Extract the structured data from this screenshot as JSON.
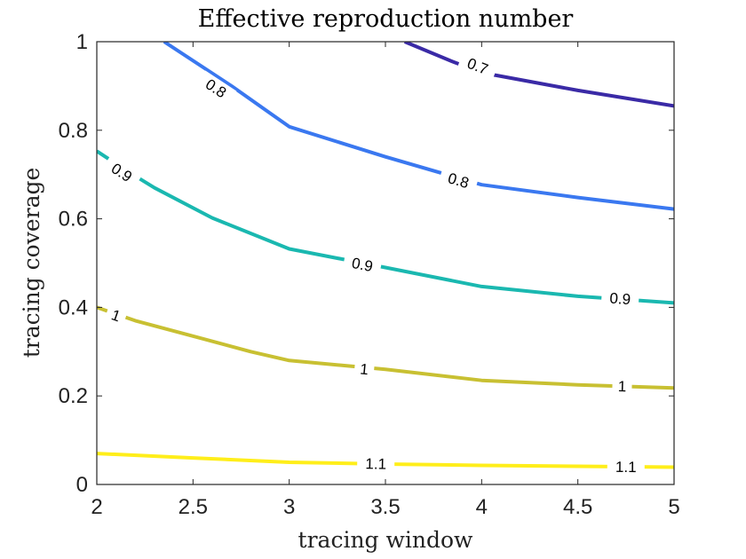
{
  "chart_data": {
    "type": "contour",
    "title": "Effective reproduction number",
    "xlabel": "tracing window",
    "ylabel": "tracing coverage",
    "xlim": [
      2,
      5
    ],
    "ylim": [
      0,
      1
    ],
    "xticks": [
      2,
      2.5,
      3,
      3.5,
      4,
      4.5,
      5
    ],
    "yticks": [
      0,
      0.2,
      0.4,
      0.6,
      0.8,
      1
    ],
    "xtick_labels": [
      "2",
      "2.5",
      "3",
      "3.5",
      "4",
      "4.5",
      "5"
    ],
    "ytick_labels": [
      "0",
      "0.2",
      "0.4",
      "0.6",
      "0.8",
      "1"
    ],
    "grid": false,
    "legend": "none",
    "series": [
      {
        "level": "0.7",
        "color": "#3a2aa6",
        "points": [
          [
            3.6,
            1.0
          ],
          [
            3.85,
            0.955
          ],
          [
            4.0,
            0.93
          ],
          [
            4.5,
            0.89
          ],
          [
            5.0,
            0.855
          ]
        ],
        "labels": [
          [
            3.98,
            0.945
          ]
        ]
      },
      {
        "level": "0.8",
        "color": "#3a78f0",
        "points": [
          [
            2.35,
            1.0
          ],
          [
            2.7,
            0.9
          ],
          [
            3.0,
            0.808
          ],
          [
            3.5,
            0.74
          ],
          [
            4.0,
            0.677
          ],
          [
            4.5,
            0.648
          ],
          [
            5.0,
            0.622
          ]
        ],
        "labels": [
          [
            2.62,
            0.895
          ],
          [
            3.88,
            0.687
          ]
        ]
      },
      {
        "level": "0.9",
        "color": "#1ab8b0",
        "points": [
          [
            2.0,
            0.753
          ],
          [
            2.15,
            0.71
          ],
          [
            2.3,
            0.67
          ],
          [
            2.6,
            0.602
          ],
          [
            3.0,
            0.532
          ],
          [
            3.5,
            0.49
          ],
          [
            4.0,
            0.447
          ],
          [
            4.5,
            0.425
          ],
          [
            5.0,
            0.41
          ]
        ],
        "labels": [
          [
            2.13,
            0.705
          ],
          [
            3.38,
            0.497
          ],
          [
            4.72,
            0.42
          ]
        ]
      },
      {
        "level": "1",
        "color": "#c8c032",
        "points": [
          [
            2.0,
            0.4
          ],
          [
            2.2,
            0.37
          ],
          [
            2.5,
            0.335
          ],
          [
            2.8,
            0.3
          ],
          [
            3.0,
            0.28
          ],
          [
            3.5,
            0.26
          ],
          [
            4.0,
            0.235
          ],
          [
            4.5,
            0.225
          ],
          [
            5.0,
            0.218
          ]
        ],
        "labels": [
          [
            2.1,
            0.382
          ],
          [
            3.39,
            0.261
          ],
          [
            4.73,
            0.222
          ]
        ]
      },
      {
        "level": "1.1",
        "color": "#ffee1a",
        "points": [
          [
            2.0,
            0.07
          ],
          [
            2.5,
            0.06
          ],
          [
            3.0,
            0.05
          ],
          [
            3.5,
            0.046
          ],
          [
            4.0,
            0.043
          ],
          [
            4.5,
            0.041
          ],
          [
            5.0,
            0.039
          ]
        ],
        "labels": [
          [
            3.45,
            0.047
          ],
          [
            4.75,
            0.04
          ]
        ]
      }
    ]
  }
}
